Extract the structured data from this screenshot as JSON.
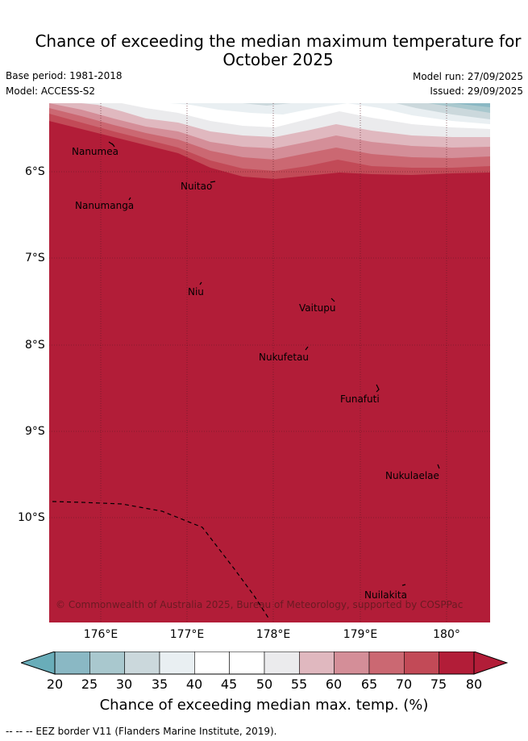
{
  "title_line1": "Chance of exceeding the median maximum temperature for",
  "title_line2": "October 2025",
  "base_period": "Base period: 1981-2018",
  "model": "Model: ACCESS-S2",
  "model_run": "Model run: 27/09/2025",
  "issued": "Issued: 29/09/2025",
  "lat_ticks": [
    "6°S",
    "7°S",
    "8°S",
    "9°S",
    "10°S"
  ],
  "lon_ticks": [
    "176°E",
    "177°E",
    "178°E",
    "179°E",
    "180°"
  ],
  "islands": [
    {
      "name": "Nanumea"
    },
    {
      "name": "Nuitao"
    },
    {
      "name": "Nanumanga"
    },
    {
      "name": "Niu"
    },
    {
      "name": "Vaitupu"
    },
    {
      "name": "Nukufetau"
    },
    {
      "name": "Funafuti"
    },
    {
      "name": "Nukulaelae"
    },
    {
      "name": "Nuilakita"
    }
  ],
  "copyright": "© Commonwealth of Australia 2025, Bureau of Meteorology, supported by COSPPac",
  "colorbar": {
    "ticks": [
      "20",
      "25",
      "30",
      "35",
      "40",
      "45",
      "50",
      "55",
      "60",
      "65",
      "70",
      "75",
      "80"
    ],
    "colors": [
      "#69adb9",
      "#8ab8c4",
      "#a9c8ce",
      "#cbd8dc",
      "#e9eff2",
      "#ffffff",
      "#ffffff",
      "#ebebed",
      "#e0b8bf",
      "#d48e98",
      "#cb6872",
      "#c24a57",
      "#b21d38"
    ],
    "label": "Chance of exceeding median max. temp. (%)"
  },
  "footnote": "-- -- -- EEZ border V11 (Flanders Marine Institute, 2019)."
}
